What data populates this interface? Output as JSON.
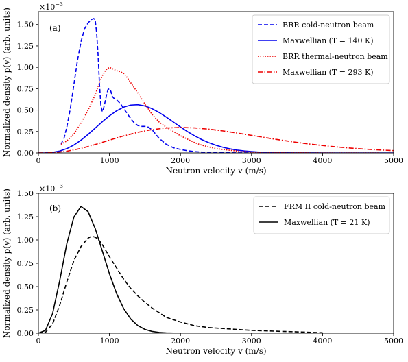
{
  "chart_data": [
    {
      "type": "line",
      "panel_label": "(a)",
      "xlabel": "Neutron velocity v (m/s)",
      "ylabel": "Normalized density p(v) (arb. units)",
      "y_multiplier": "×10",
      "y_multiplier_exp": "−3",
      "xlim": [
        0,
        5000
      ],
      "ylim": [
        0,
        1.65
      ],
      "x_ticks": [
        0,
        1000,
        2000,
        3000,
        4000,
        5000
      ],
      "x_tick_labels": [
        "0",
        "1000",
        "2000",
        "3000",
        "4000",
        "5000"
      ],
      "y_ticks": [
        0,
        0.25,
        0.5,
        0.75,
        1.0,
        1.25,
        1.5
      ],
      "y_tick_labels": [
        "0.00",
        "0.25",
        "0.50",
        "0.75",
        "1.00",
        "1.25",
        "1.50"
      ],
      "legend_position": "top-right",
      "series": [
        {
          "name": "BRR cold-neutron beam",
          "color": "#0000ee",
          "dash": "6,3",
          "x": [
            320,
            340,
            360,
            400,
            450,
            500,
            550,
            600,
            650,
            700,
            750,
            780,
            800,
            820,
            840,
            860,
            880,
            900,
            920,
            940,
            960,
            980,
            1000,
            1020,
            1040,
            1060,
            1080,
            1100,
            1150,
            1200,
            1250,
            1300,
            1350,
            1400,
            1450,
            1500,
            1550,
            1600,
            1650,
            1700,
            1800,
            1900,
            2000,
            2100,
            2200,
            2300,
            2400,
            2500,
            2600,
            2800,
            3000
          ],
          "y": [
            0.1,
            0.14,
            0.17,
            0.3,
            0.52,
            0.8,
            1.08,
            1.3,
            1.45,
            1.52,
            1.56,
            1.57,
            1.55,
            1.4,
            1.15,
            0.8,
            0.55,
            0.48,
            0.53,
            0.6,
            0.68,
            0.74,
            0.75,
            0.72,
            0.66,
            0.64,
            0.63,
            0.62,
            0.58,
            0.52,
            0.46,
            0.4,
            0.35,
            0.32,
            0.31,
            0.31,
            0.3,
            0.27,
            0.22,
            0.17,
            0.1,
            0.06,
            0.04,
            0.025,
            0.015,
            0.01,
            0.006,
            0.004,
            0.002,
            0.001,
            0.0
          ]
        },
        {
          "name": "Maxwellian (T = 140 K)",
          "color": "#0000ee",
          "dash": "",
          "maxwellian_T_K": 140,
          "x": [
            0,
            100,
            200,
            300,
            400,
            500,
            600,
            700,
            800,
            900,
            1000,
            1100,
            1200,
            1300,
            1400,
            1500,
            1600,
            1700,
            1800,
            1900,
            2000,
            2100,
            2200,
            2300,
            2400,
            2500,
            2600,
            2700,
            2800,
            2900,
            3000,
            3100,
            3200,
            3300,
            3400,
            3500,
            3600,
            3700,
            3800,
            3900,
            4000,
            4200,
            4400,
            4600,
            4800,
            5000
          ],
          "y": [
            0.0,
            0.0008,
            0.0066,
            0.0217,
            0.0498,
            0.0924,
            0.1489,
            0.2163,
            0.2899,
            0.3641,
            0.4331,
            0.4914,
            0.5343,
            0.5587,
            0.5632,
            0.5483,
            0.5165,
            0.4716,
            0.4181,
            0.3605,
            0.3028,
            0.2481,
            0.1985,
            0.1553,
            0.1188,
            0.0889,
            0.0651,
            0.0467,
            0.0328,
            0.0226,
            0.0152,
            0.01,
            0.0065,
            0.0041,
            0.0026,
            0.0016,
            0.001,
            0.0006,
            0.0003,
            0.0002,
            0.0001,
            0.0,
            0.0,
            0.0,
            0.0,
            0.0
          ]
        },
        {
          "name": "BRR thermal-neutron beam",
          "color": "#ee0000",
          "dash": "1.5,2",
          "x": [
            320,
            400,
            500,
            600,
            700,
            800,
            850,
            900,
            950,
            1000,
            1050,
            1100,
            1150,
            1200,
            1250,
            1300,
            1400,
            1500,
            1600,
            1700,
            1800,
            1900,
            2000,
            2100,
            2200,
            2300,
            2400,
            2500,
            2600,
            2700,
            2800,
            2900,
            3000,
            3200,
            3400,
            3600,
            3800,
            4000,
            4200,
            4400,
            4600,
            4800
          ],
          "y": [
            0.1,
            0.14,
            0.22,
            0.35,
            0.5,
            0.68,
            0.8,
            0.9,
            0.97,
            1.0,
            0.98,
            0.96,
            0.95,
            0.93,
            0.88,
            0.82,
            0.7,
            0.57,
            0.45,
            0.36,
            0.3,
            0.25,
            0.2,
            0.16,
            0.12,
            0.09,
            0.07,
            0.05,
            0.04,
            0.03,
            0.022,
            0.015,
            0.01,
            0.006,
            0.004,
            0.002,
            0.001,
            0.0,
            0.0,
            0.0,
            0.0,
            0.0
          ]
        },
        {
          "name": "Maxwellian (T = 293 K)",
          "color": "#ee0000",
          "dash": "7,2.5,1.5,2.5",
          "maxwellian_T_K": 293,
          "x": [
            0,
            200,
            400,
            600,
            800,
            1000,
            1200,
            1400,
            1600,
            1800,
            2000,
            2200,
            2400,
            2600,
            2800,
            3000,
            3200,
            3400,
            3600,
            3800,
            4000,
            4200,
            4400,
            4600,
            4800,
            5000
          ],
          "y": [
            0.0,
            0.0029,
            0.0196,
            0.0523,
            0.0979,
            0.1493,
            0.1984,
            0.2404,
            0.272,
            0.2908,
            0.2969,
            0.2916,
            0.2772,
            0.2564,
            0.2314,
            0.2046,
            0.1775,
            0.1514,
            0.1272,
            0.1053,
            0.0861,
            0.0695,
            0.0556,
            0.044,
            0.0346,
            0.0269
          ]
        }
      ]
    },
    {
      "type": "line",
      "panel_label": "(b)",
      "xlabel": "Neutron velocity v (m/s)",
      "ylabel": "Normalized density p(v) (arb. units)",
      "y_multiplier": "×10",
      "y_multiplier_exp": "−3",
      "xlim": [
        0,
        5000
      ],
      "ylim": [
        0,
        1.5
      ],
      "x_ticks": [
        0,
        1000,
        2000,
        3000,
        4000,
        5000
      ],
      "x_tick_labels": [
        "0",
        "1000",
        "2000",
        "3000",
        "4000",
        "5000"
      ],
      "y_ticks": [
        0,
        0.25,
        0.5,
        0.75,
        1.0,
        1.25,
        1.5
      ],
      "y_tick_labels": [
        "0.00",
        "0.25",
        "0.50",
        "0.75",
        "1.00",
        "1.25",
        "1.50"
      ],
      "legend_position": "top-right",
      "series": [
        {
          "name": "FRM II cold-neutron beam",
          "color": "#000000",
          "dash": "6,3",
          "x": [
            0,
            100,
            200,
            300,
            400,
            500,
            600,
            700,
            750,
            800,
            850,
            900,
            1000,
            1100,
            1200,
            1300,
            1400,
            1500,
            1600,
            1700,
            1800,
            2000,
            2200,
            2400,
            2600,
            2800,
            3000,
            3200,
            3400,
            3600,
            3800,
            4000
          ],
          "y": [
            0.0,
            0.01,
            0.1,
            0.3,
            0.55,
            0.78,
            0.93,
            1.02,
            1.04,
            1.03,
            1.0,
            0.95,
            0.82,
            0.7,
            0.58,
            0.48,
            0.4,
            0.33,
            0.27,
            0.22,
            0.17,
            0.12,
            0.08,
            0.06,
            0.05,
            0.04,
            0.03,
            0.025,
            0.02,
            0.015,
            0.01,
            0.005
          ]
        },
        {
          "name": "Maxwellian (T = 21 K)",
          "color": "#000000",
          "dash": "",
          "maxwellian_T_K": 21,
          "x": [
            0,
            100,
            200,
            300,
            400,
            500,
            600,
            700,
            800,
            900,
            1000,
            1100,
            1200,
            1300,
            1400,
            1500,
            1600,
            1700,
            1800,
            1900,
            2000,
            2200,
            2400,
            2600
          ],
          "y": [
            0.0,
            0.0305,
            0.2114,
            0.5638,
            0.9599,
            1.2469,
            1.3597,
            1.3029,
            1.1218,
            0.8814,
            0.6375,
            0.4265,
            0.2641,
            0.1518,
            0.0811,
            0.0404,
            0.0188,
            0.0082,
            0.0033,
            0.0013,
            0.0005,
            0.0001,
            0.0,
            0.0
          ]
        }
      ]
    }
  ]
}
